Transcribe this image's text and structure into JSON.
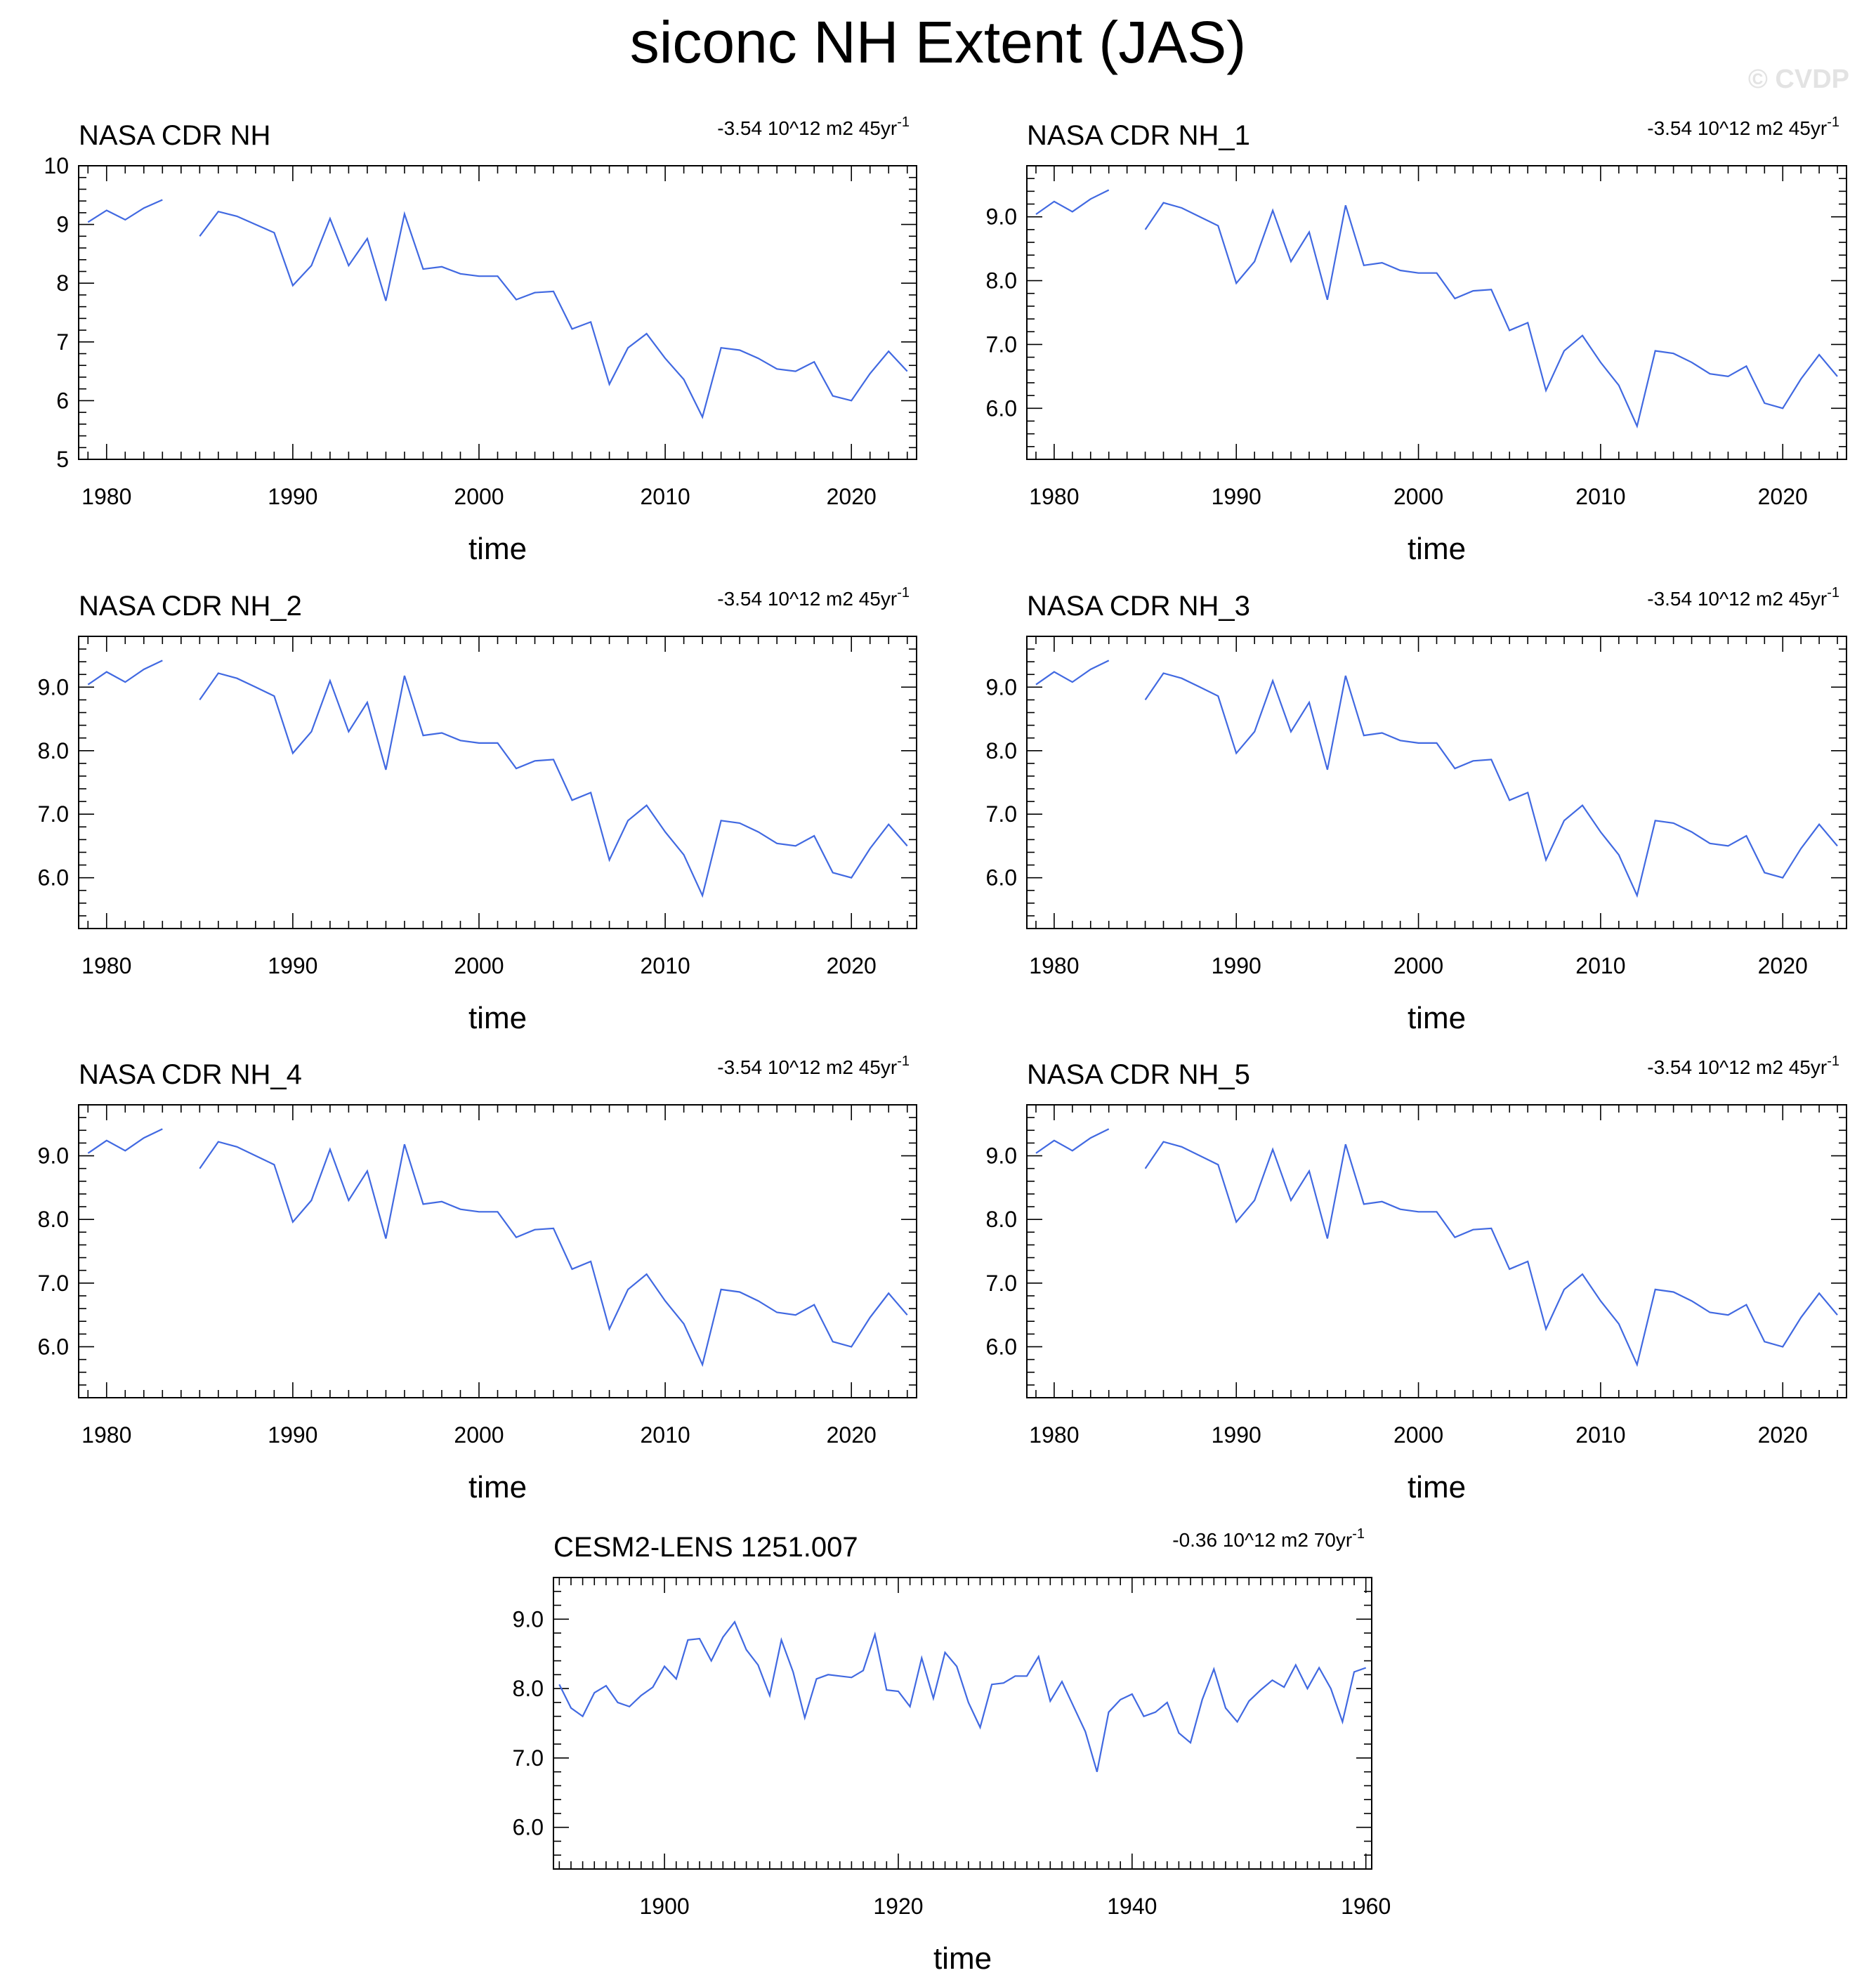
{
  "title": "siconc NH Extent (JAS)",
  "watermark": "© CVDP",
  "colors": {
    "line": "#4169e1",
    "axis": "#000000"
  },
  "chart_data": [
    {
      "type": "line",
      "title": "NASA CDR NH",
      "trend_text": "-3.54 10^12 m2 45yr",
      "trend_sup": "-1",
      "xlabel": "time",
      "ylabel": "",
      "xlim": [
        1978.5,
        2023.5
      ],
      "ylim": [
        5.0,
        10.0
      ],
      "yticks": [
        5,
        6,
        7,
        8,
        9,
        10
      ],
      "yticklabels": [
        "5",
        "6",
        "7",
        "8",
        "9",
        "10"
      ],
      "xticks": [
        1980,
        1990,
        2000,
        2010,
        2020
      ],
      "xticklabels": [
        "1980",
        "1990",
        "2000",
        "2010",
        "2020"
      ],
      "x": [
        1979,
        1980,
        1981,
        1982,
        1983,
        1984,
        1985,
        1986,
        1987,
        1988,
        1989,
        1990,
        1991,
        1992,
        1993,
        1994,
        1995,
        1996,
        1997,
        1998,
        1999,
        2000,
        2001,
        2002,
        2003,
        2004,
        2005,
        2006,
        2007,
        2008,
        2009,
        2010,
        2011,
        2012,
        2013,
        2014,
        2015,
        2016,
        2017,
        2018,
        2019,
        2020,
        2021,
        2022,
        2023
      ],
      "series": [
        {
          "values": [
            9.04,
            9.24,
            9.08,
            9.28,
            9.42,
            null,
            8.8,
            9.22,
            9.14,
            9.0,
            8.86,
            7.96,
            8.3,
            9.1,
            8.3,
            8.76,
            7.7,
            9.18,
            8.24,
            8.28,
            8.16,
            8.12,
            8.12,
            7.72,
            7.84,
            7.86,
            7.22,
            7.34,
            6.28,
            6.9,
            7.14,
            6.72,
            6.36,
            5.72,
            6.9,
            6.86,
            6.72,
            6.54,
            6.5,
            6.66,
            6.08,
            6.0,
            6.46,
            6.84,
            6.5
          ]
        }
      ]
    },
    {
      "type": "line",
      "title": "NASA CDR NH_1",
      "trend_text": "-3.54 10^12 m2 45yr",
      "trend_sup": "-1",
      "xlabel": "time",
      "ylabel": "",
      "xlim": [
        1978.5,
        2023.5
      ],
      "ylim": [
        5.2,
        9.8
      ],
      "yticks": [
        6.0,
        7.0,
        8.0,
        9.0
      ],
      "yticklabels": [
        "6.0",
        "7.0",
        "8.0",
        "9.0"
      ],
      "xticks": [
        1980,
        1990,
        2000,
        2010,
        2020
      ],
      "xticklabels": [
        "1980",
        "1990",
        "2000",
        "2010",
        "2020"
      ],
      "x": [
        1979,
        1980,
        1981,
        1982,
        1983,
        1984,
        1985,
        1986,
        1987,
        1988,
        1989,
        1990,
        1991,
        1992,
        1993,
        1994,
        1995,
        1996,
        1997,
        1998,
        1999,
        2000,
        2001,
        2002,
        2003,
        2004,
        2005,
        2006,
        2007,
        2008,
        2009,
        2010,
        2011,
        2012,
        2013,
        2014,
        2015,
        2016,
        2017,
        2018,
        2019,
        2020,
        2021,
        2022,
        2023
      ],
      "series": [
        {
          "values": [
            9.04,
            9.24,
            9.08,
            9.28,
            9.42,
            null,
            8.8,
            9.22,
            9.14,
            9.0,
            8.86,
            7.96,
            8.3,
            9.1,
            8.3,
            8.76,
            7.7,
            9.18,
            8.24,
            8.28,
            8.16,
            8.12,
            8.12,
            7.72,
            7.84,
            7.86,
            7.22,
            7.34,
            6.28,
            6.9,
            7.14,
            6.72,
            6.36,
            5.72,
            6.9,
            6.86,
            6.72,
            6.54,
            6.5,
            6.66,
            6.08,
            6.0,
            6.46,
            6.84,
            6.5
          ]
        }
      ]
    },
    {
      "type": "line",
      "title": "NASA CDR NH_2",
      "trend_text": "-3.54 10^12 m2 45yr",
      "trend_sup": "-1",
      "xlabel": "time",
      "ylabel": "",
      "xlim": [
        1978.5,
        2023.5
      ],
      "ylim": [
        5.2,
        9.8
      ],
      "yticks": [
        6.0,
        7.0,
        8.0,
        9.0
      ],
      "yticklabels": [
        "6.0",
        "7.0",
        "8.0",
        "9.0"
      ],
      "xticks": [
        1980,
        1990,
        2000,
        2010,
        2020
      ],
      "xticklabels": [
        "1980",
        "1990",
        "2000",
        "2010",
        "2020"
      ],
      "x": [
        1979,
        1980,
        1981,
        1982,
        1983,
        1984,
        1985,
        1986,
        1987,
        1988,
        1989,
        1990,
        1991,
        1992,
        1993,
        1994,
        1995,
        1996,
        1997,
        1998,
        1999,
        2000,
        2001,
        2002,
        2003,
        2004,
        2005,
        2006,
        2007,
        2008,
        2009,
        2010,
        2011,
        2012,
        2013,
        2014,
        2015,
        2016,
        2017,
        2018,
        2019,
        2020,
        2021,
        2022,
        2023
      ],
      "series": [
        {
          "values": [
            9.04,
            9.24,
            9.08,
            9.28,
            9.42,
            null,
            8.8,
            9.22,
            9.14,
            9.0,
            8.86,
            7.96,
            8.3,
            9.1,
            8.3,
            8.76,
            7.7,
            9.18,
            8.24,
            8.28,
            8.16,
            8.12,
            8.12,
            7.72,
            7.84,
            7.86,
            7.22,
            7.34,
            6.28,
            6.9,
            7.14,
            6.72,
            6.36,
            5.72,
            6.9,
            6.86,
            6.72,
            6.54,
            6.5,
            6.66,
            6.08,
            6.0,
            6.46,
            6.84,
            6.5
          ]
        }
      ]
    },
    {
      "type": "line",
      "title": "NASA CDR NH_3",
      "trend_text": "-3.54 10^12 m2 45yr",
      "trend_sup": "-1",
      "xlabel": "time",
      "ylabel": "",
      "xlim": [
        1978.5,
        2023.5
      ],
      "ylim": [
        5.2,
        9.8
      ],
      "yticks": [
        6.0,
        7.0,
        8.0,
        9.0
      ],
      "yticklabels": [
        "6.0",
        "7.0",
        "8.0",
        "9.0"
      ],
      "xticks": [
        1980,
        1990,
        2000,
        2010,
        2020
      ],
      "xticklabels": [
        "1980",
        "1990",
        "2000",
        "2010",
        "2020"
      ],
      "x": [
        1979,
        1980,
        1981,
        1982,
        1983,
        1984,
        1985,
        1986,
        1987,
        1988,
        1989,
        1990,
        1991,
        1992,
        1993,
        1994,
        1995,
        1996,
        1997,
        1998,
        1999,
        2000,
        2001,
        2002,
        2003,
        2004,
        2005,
        2006,
        2007,
        2008,
        2009,
        2010,
        2011,
        2012,
        2013,
        2014,
        2015,
        2016,
        2017,
        2018,
        2019,
        2020,
        2021,
        2022,
        2023
      ],
      "series": [
        {
          "values": [
            9.04,
            9.24,
            9.08,
            9.28,
            9.42,
            null,
            8.8,
            9.22,
            9.14,
            9.0,
            8.86,
            7.96,
            8.3,
            9.1,
            8.3,
            8.76,
            7.7,
            9.18,
            8.24,
            8.28,
            8.16,
            8.12,
            8.12,
            7.72,
            7.84,
            7.86,
            7.22,
            7.34,
            6.28,
            6.9,
            7.14,
            6.72,
            6.36,
            5.72,
            6.9,
            6.86,
            6.72,
            6.54,
            6.5,
            6.66,
            6.08,
            6.0,
            6.46,
            6.84,
            6.5
          ]
        }
      ]
    },
    {
      "type": "line",
      "title": "NASA CDR NH_4",
      "trend_text": "-3.54 10^12 m2 45yr",
      "trend_sup": "-1",
      "xlabel": "time",
      "ylabel": "",
      "xlim": [
        1978.5,
        2023.5
      ],
      "ylim": [
        5.2,
        9.8
      ],
      "yticks": [
        6.0,
        7.0,
        8.0,
        9.0
      ],
      "yticklabels": [
        "6.0",
        "7.0",
        "8.0",
        "9.0"
      ],
      "xticks": [
        1980,
        1990,
        2000,
        2010,
        2020
      ],
      "xticklabels": [
        "1980",
        "1990",
        "2000",
        "2010",
        "2020"
      ],
      "x": [
        1979,
        1980,
        1981,
        1982,
        1983,
        1984,
        1985,
        1986,
        1987,
        1988,
        1989,
        1990,
        1991,
        1992,
        1993,
        1994,
        1995,
        1996,
        1997,
        1998,
        1999,
        2000,
        2001,
        2002,
        2003,
        2004,
        2005,
        2006,
        2007,
        2008,
        2009,
        2010,
        2011,
        2012,
        2013,
        2014,
        2015,
        2016,
        2017,
        2018,
        2019,
        2020,
        2021,
        2022,
        2023
      ],
      "series": [
        {
          "values": [
            9.04,
            9.24,
            9.08,
            9.28,
            9.42,
            null,
            8.8,
            9.22,
            9.14,
            9.0,
            8.86,
            7.96,
            8.3,
            9.1,
            8.3,
            8.76,
            7.7,
            9.18,
            8.24,
            8.28,
            8.16,
            8.12,
            8.12,
            7.72,
            7.84,
            7.86,
            7.22,
            7.34,
            6.28,
            6.9,
            7.14,
            6.72,
            6.36,
            5.72,
            6.9,
            6.86,
            6.72,
            6.54,
            6.5,
            6.66,
            6.08,
            6.0,
            6.46,
            6.84,
            6.5
          ]
        }
      ]
    },
    {
      "type": "line",
      "title": "NASA CDR NH_5",
      "trend_text": "-3.54 10^12 m2 45yr",
      "trend_sup": "-1",
      "xlabel": "time",
      "ylabel": "",
      "xlim": [
        1978.5,
        2023.5
      ],
      "ylim": [
        5.2,
        9.8
      ],
      "yticks": [
        6.0,
        7.0,
        8.0,
        9.0
      ],
      "yticklabels": [
        "6.0",
        "7.0",
        "8.0",
        "9.0"
      ],
      "xticks": [
        1980,
        1990,
        2000,
        2010,
        2020
      ],
      "xticklabels": [
        "1980",
        "1990",
        "2000",
        "2010",
        "2020"
      ],
      "x": [
        1979,
        1980,
        1981,
        1982,
        1983,
        1984,
        1985,
        1986,
        1987,
        1988,
        1989,
        1990,
        1991,
        1992,
        1993,
        1994,
        1995,
        1996,
        1997,
        1998,
        1999,
        2000,
        2001,
        2002,
        2003,
        2004,
        2005,
        2006,
        2007,
        2008,
        2009,
        2010,
        2011,
        2012,
        2013,
        2014,
        2015,
        2016,
        2017,
        2018,
        2019,
        2020,
        2021,
        2022,
        2023
      ],
      "series": [
        {
          "values": [
            9.04,
            9.24,
            9.08,
            9.28,
            9.42,
            null,
            8.8,
            9.22,
            9.14,
            9.0,
            8.86,
            7.96,
            8.3,
            9.1,
            8.3,
            8.76,
            7.7,
            9.18,
            8.24,
            8.28,
            8.16,
            8.12,
            8.12,
            7.72,
            7.84,
            7.86,
            7.22,
            7.34,
            6.28,
            6.9,
            7.14,
            6.72,
            6.36,
            5.72,
            6.9,
            6.86,
            6.72,
            6.54,
            6.5,
            6.66,
            6.08,
            6.0,
            6.46,
            6.84,
            6.5
          ]
        }
      ]
    },
    {
      "type": "line",
      "title": "CESM2-LENS 1251.007",
      "trend_text": "-0.36 10^12 m2 70yr",
      "trend_sup": "-1",
      "xlabel": "time",
      "ylabel": "",
      "xlim": [
        1890.5,
        1960.5
      ],
      "ylim": [
        5.4,
        9.6
      ],
      "yticks": [
        6.0,
        7.0,
        8.0,
        9.0
      ],
      "yticklabels": [
        "6.0",
        "7.0",
        "8.0",
        "9.0"
      ],
      "xticks": [
        1900,
        1920,
        1940,
        1960
      ],
      "xticklabels": [
        "1900",
        "1920",
        "1940",
        "1960"
      ],
      "x": [
        1891,
        1892,
        1893,
        1894,
        1895,
        1896,
        1897,
        1898,
        1899,
        1900,
        1901,
        1902,
        1903,
        1904,
        1905,
        1906,
        1907,
        1908,
        1909,
        1910,
        1911,
        1912,
        1913,
        1914,
        1915,
        1916,
        1917,
        1918,
        1919,
        1920,
        1921,
        1922,
        1923,
        1924,
        1925,
        1926,
        1927,
        1928,
        1929,
        1930,
        1931,
        1932,
        1933,
        1934,
        1935,
        1936,
        1937,
        1938,
        1939,
        1940,
        1941,
        1942,
        1943,
        1944,
        1945,
        1946,
        1947,
        1948,
        1949,
        1950,
        1951,
        1952,
        1953,
        1954,
        1955,
        1956,
        1957,
        1958,
        1959,
        1960
      ],
      "series": [
        {
          "values": [
            8.06,
            7.72,
            7.6,
            7.94,
            8.04,
            7.8,
            7.74,
            7.9,
            8.02,
            8.32,
            8.14,
            8.7,
            8.72,
            8.4,
            8.74,
            8.96,
            8.56,
            8.34,
            7.9,
            8.7,
            8.24,
            7.58,
            8.14,
            8.2,
            8.18,
            8.16,
            8.26,
            8.78,
            7.98,
            7.96,
            7.74,
            8.44,
            7.86,
            8.52,
            8.32,
            7.8,
            7.44,
            8.06,
            8.08,
            8.18,
            8.18,
            8.46,
            7.82,
            8.1,
            7.74,
            7.38,
            6.8,
            7.66,
            7.84,
            7.92,
            7.6,
            7.66,
            7.8,
            7.36,
            7.22,
            7.84,
            8.28,
            7.72,
            7.52,
            7.82,
            7.98,
            8.12,
            8.02,
            8.34,
            8.0,
            8.3,
            8.0,
            7.52,
            8.24,
            8.3
          ]
        }
      ]
    }
  ]
}
